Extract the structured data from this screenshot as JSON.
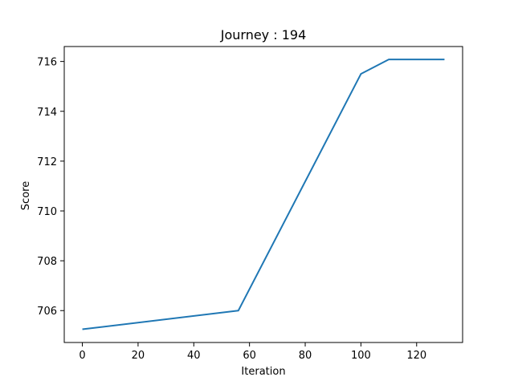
{
  "chart_data": {
    "type": "line",
    "title": "Journey : 194",
    "xlabel": "Iteration",
    "ylabel": "Score",
    "xlim": [
      -6.5,
      136.5
    ],
    "ylim": [
      704.72,
      716.6
    ],
    "xticks": [
      0,
      20,
      40,
      60,
      80,
      100,
      120
    ],
    "yticks": [
      706,
      708,
      710,
      712,
      714,
      716
    ],
    "grid": false,
    "series": [
      {
        "color": "#1f77b4",
        "x": [
          0,
          56,
          100,
          110,
          130
        ],
        "y": [
          705.25,
          706.0,
          715.5,
          716.08,
          716.08
        ]
      }
    ]
  }
}
